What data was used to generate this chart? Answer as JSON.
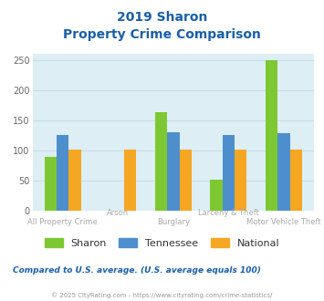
{
  "title_line1": "2019 Sharon",
  "title_line2": "Property Crime Comparison",
  "categories": [
    "All Property Crime",
    "Arson",
    "Burglary",
    "Larceny & Theft",
    "Motor Vehicle Theft"
  ],
  "sharon": [
    90,
    0,
    163,
    51,
    250
  ],
  "tennessee": [
    126,
    0,
    130,
    126,
    129
  ],
  "national": [
    101,
    101,
    101,
    101,
    101
  ],
  "sharon_color": "#7dc832",
  "tennessee_color": "#4d8fcc",
  "national_color": "#f5a623",
  "bg_color": "#ddeef5",
  "title_color": "#1a5fa8",
  "ylim": [
    0,
    260
  ],
  "yticks": [
    0,
    50,
    100,
    150,
    200,
    250
  ],
  "bar_width": 0.22,
  "footnote": "Compared to U.S. average. (U.S. average equals 100)",
  "copyright": "© 2025 CityRating.com - https://www.cityrating.com/crime-statistics/",
  "footnote_color": "#1a5fa8",
  "copyright_color": "#999999",
  "legend_labels": [
    "Sharon",
    "Tennessee",
    "National"
  ],
  "xticklabel_color": "#aaaaaa",
  "grid_color": "#c8dde8"
}
